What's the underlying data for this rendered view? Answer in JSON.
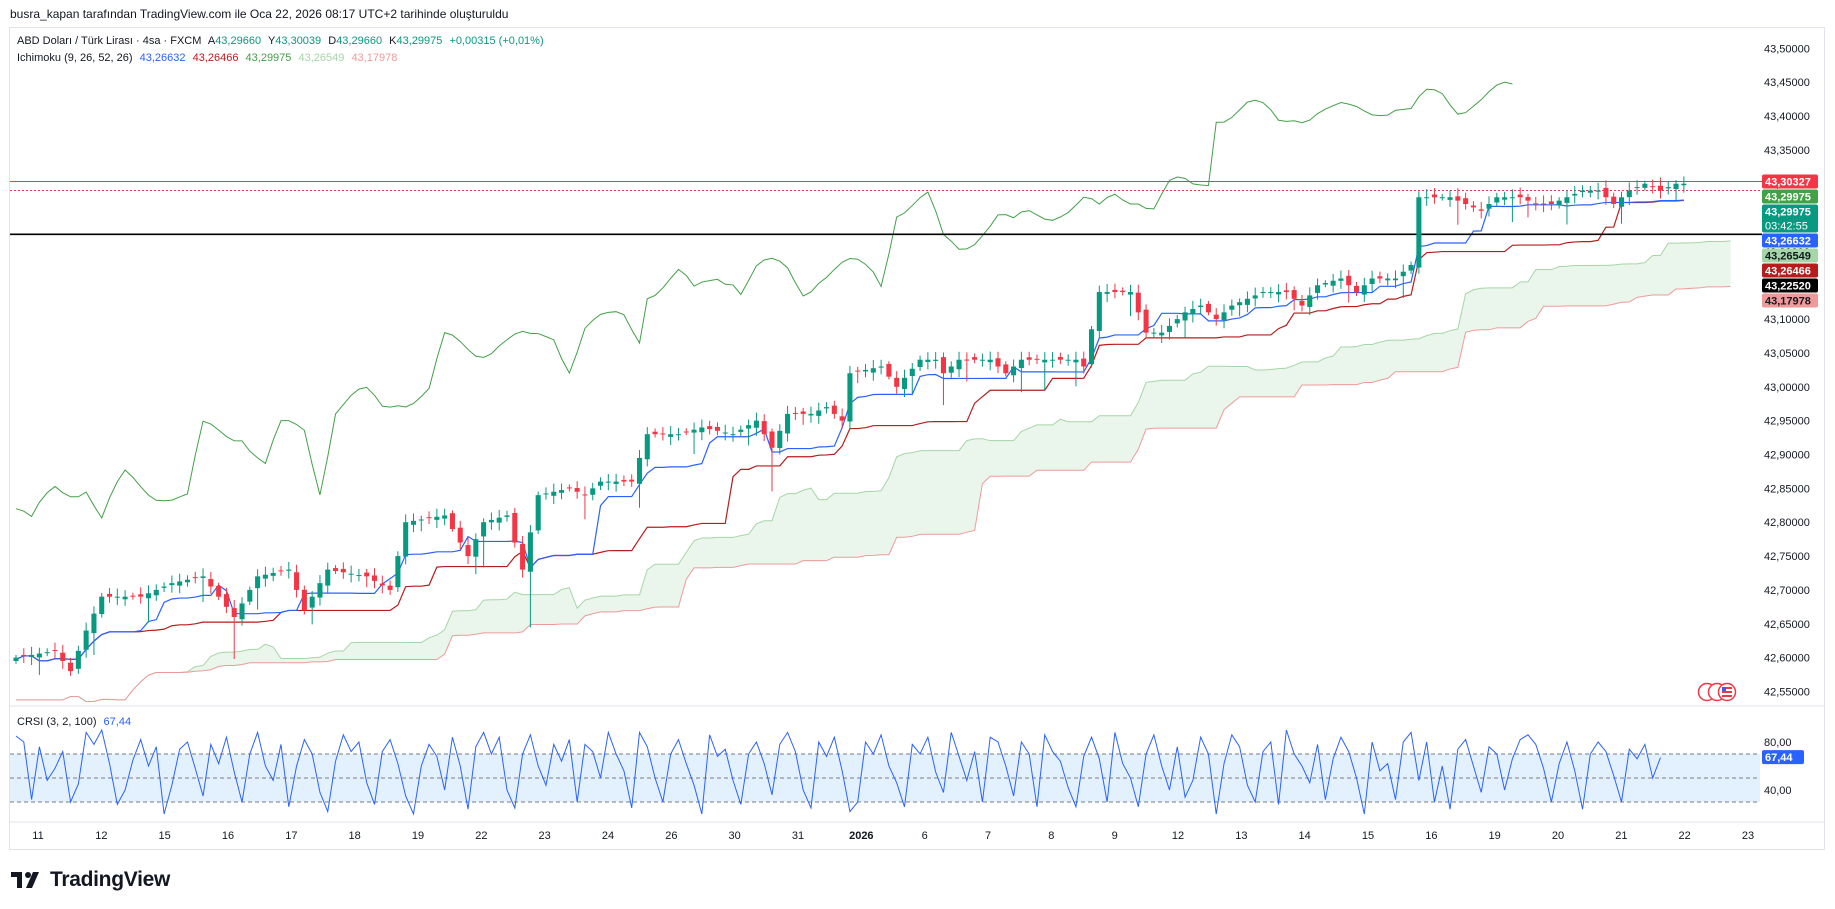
{
  "header": {
    "attribution": "busra_kapan tarafından TradingView.com ile Oca 22, 2026 08:17 UTC+2 tarihinde oluşturuldu"
  },
  "legend": {
    "symbol": "ABD Doları / Türk Lirası · 4sa · FXCM",
    "open_label": "A",
    "open": "43,29660",
    "high_label": "Y",
    "high": "43,30039",
    "low_label": "D",
    "low": "43,29660",
    "close_label": "K",
    "close": "43,29975",
    "change": "+0,00315 (+0,01%)",
    "ichimoku_label": "Ichimoku (9, 26, 52, 26)",
    "ichimoku_values": [
      "43,26632",
      "43,26466",
      "43,29975",
      "43,26549",
      "43,17978"
    ],
    "crsi_label": "CRSI (3, 2, 100)",
    "crsi_value": "67,44"
  },
  "footer": {
    "brand": "TradingView"
  },
  "colors": {
    "up": "#089981",
    "down": "#f23645",
    "conversion": "#2962ff",
    "base": "#b71c1c",
    "lagging": "#43a047",
    "span_a": "#a5d6a7",
    "span_b": "#ef9a9a",
    "cloud": "#e8f5e9",
    "crsi": "#2962ff",
    "crsi_fill": "#e3f0fd",
    "text_up": "#089981",
    "text_down": "#f23645"
  },
  "chart_data": [
    {
      "type": "candlestick",
      "title": "ABD Doları / Türk Lirası · 4sa · FXCM",
      "timeframe": "4sa",
      "ylim": [
        42.53,
        43.53
      ],
      "y_ticks": [
        "43,50000",
        "43,45000",
        "43,40000",
        "43,35000",
        "43,30000",
        "43,25000",
        "43,20000",
        "43,15000",
        "43,10000",
        "43,05000",
        "43,00000",
        "42,95000",
        "42,90000",
        "42,85000",
        "42,80000",
        "42,75000",
        "42,70000",
        "42,65000",
        "42,60000",
        "42,55000"
      ],
      "x_ticks": [
        "11",
        "12",
        "15",
        "16",
        "17",
        "18",
        "19",
        "22",
        "23",
        "24",
        "26",
        "30",
        "31",
        "2026",
        "6",
        "7",
        "8",
        "9",
        "12",
        "13",
        "14",
        "15",
        "16",
        "19",
        "20",
        "21",
        "22",
        "23"
      ],
      "close_anchors": [
        [
          0,
          42.6
        ],
        [
          5,
          42.61
        ],
        [
          7,
          42.58
        ],
        [
          9,
          42.64
        ],
        [
          11,
          42.69
        ],
        [
          16,
          42.69
        ],
        [
          20,
          42.71
        ],
        [
          24,
          42.72
        ],
        [
          28,
          42.66
        ],
        [
          31,
          42.72
        ],
        [
          35,
          42.73
        ],
        [
          37,
          42.67
        ],
        [
          40,
          42.73
        ],
        [
          45,
          42.72
        ],
        [
          48,
          42.7
        ],
        [
          50,
          42.8
        ],
        [
          55,
          42.81
        ],
        [
          58,
          42.75
        ],
        [
          60,
          42.8
        ],
        [
          63,
          42.81
        ],
        [
          65,
          42.73
        ],
        [
          67,
          42.84
        ],
        [
          71,
          42.85
        ],
        [
          73,
          42.84
        ],
        [
          75,
          42.86
        ],
        [
          79,
          42.86
        ],
        [
          81,
          42.93
        ],
        [
          85,
          42.93
        ],
        [
          88,
          42.94
        ],
        [
          92,
          42.93
        ],
        [
          95,
          42.95
        ],
        [
          97,
          42.91
        ],
        [
          99,
          42.96
        ],
        [
          102,
          42.96
        ],
        [
          104,
          42.97
        ],
        [
          106,
          42.95
        ],
        [
          107,
          43.02
        ],
        [
          111,
          43.03
        ],
        [
          113,
          43.0
        ],
        [
          116,
          43.04
        ],
        [
          118,
          43.04
        ],
        [
          119,
          43.02
        ],
        [
          121,
          43.04
        ],
        [
          125,
          43.04
        ],
        [
          127,
          43.02
        ],
        [
          129,
          43.04
        ],
        [
          134,
          43.04
        ],
        [
          136,
          43.04
        ],
        [
          137,
          43.03
        ],
        [
          139,
          43.14
        ],
        [
          143,
          43.14
        ],
        [
          145,
          43.08
        ],
        [
          147,
          43.08
        ],
        [
          150,
          43.11
        ],
        [
          152,
          43.12
        ],
        [
          154,
          43.1
        ],
        [
          156,
          43.12
        ],
        [
          158,
          43.13
        ],
        [
          160,
          43.14
        ],
        [
          163,
          43.14
        ],
        [
          165,
          43.12
        ],
        [
          167,
          43.15
        ],
        [
          170,
          43.16
        ],
        [
          172,
          43.14
        ],
        [
          174,
          43.16
        ],
        [
          177,
          43.16
        ],
        [
          179,
          43.18
        ],
        [
          180,
          43.28
        ],
        [
          184,
          43.28
        ],
        [
          186,
          43.27
        ],
        [
          188,
          43.26
        ],
        [
          190,
          43.28
        ],
        [
          193,
          43.28
        ],
        [
          195,
          43.27
        ],
        [
          197,
          43.27
        ],
        [
          199,
          43.28
        ],
        [
          201,
          43.29
        ],
        [
          203,
          43.29
        ],
        [
          205,
          43.27
        ],
        [
          207,
          43.29
        ],
        [
          209,
          43.3
        ],
        [
          211,
          43.29
        ],
        [
          213,
          43.3
        ],
        [
          214,
          43.3
        ]
      ],
      "ichimoku": {
        "params": [
          9,
          26,
          52,
          26
        ],
        "conversion": 43.26632,
        "base": 43.26466,
        "lagging": 43.29975,
        "span_a": 43.26549,
        "span_b": 43.17978
      },
      "last_price": 43.29975,
      "horizontal_lines": [
        {
          "price": 43.30327,
          "color": "#f23645",
          "style": "solid"
        },
        {
          "price": 43.29,
          "color": "#f23645",
          "style": "dotted"
        },
        {
          "price": 43.2252,
          "color": "#000000",
          "style": "solid"
        }
      ],
      "price_labels": [
        {
          "price": 43.30327,
          "text": "43,30327",
          "bg": "#f23645",
          "fg": "#ffffff"
        },
        {
          "price": 43.29975,
          "text": "43,29975",
          "bg": "#43a047",
          "fg": "#ffffff"
        },
        {
          "price": 43.28,
          "text": "43,29975",
          "sub": "03:42:55",
          "bg": "#089981",
          "fg": "#ffffff"
        },
        {
          "price": 43.26632,
          "text": "43,26632",
          "bg": "#2962ff",
          "fg": "#ffffff"
        },
        {
          "price": 43.26549,
          "text": "43,26549",
          "bg": "#a5d6a7",
          "fg": "#131722"
        },
        {
          "price": 43.26466,
          "text": "43,26466",
          "bg": "#b71c1c",
          "fg": "#ffffff"
        },
        {
          "price": 43.2252,
          "text": "43,22520",
          "bg": "#000000",
          "fg": "#ffffff"
        },
        {
          "price": 43.17978,
          "text": "43,17978",
          "bg": "#ef9a9a",
          "fg": "#131722"
        }
      ]
    },
    {
      "type": "line",
      "title": "CRSI (3, 2, 100)",
      "ylim": [
        15,
        100
      ],
      "bands": [
        70,
        50,
        30
      ],
      "y_ticks": [
        "80,00",
        "40,00"
      ],
      "last_value": 67.44,
      "last_label": "67,44",
      "values": [
        85,
        80,
        32,
        76,
        48,
        58,
        72,
        30,
        45,
        88,
        78,
        90,
        62,
        28,
        40,
        65,
        82,
        60,
        76,
        20,
        44,
        74,
        80,
        58,
        35,
        78,
        62,
        84,
        55,
        30,
        70,
        88,
        60,
        48,
        78,
        26,
        60,
        82,
        70,
        38,
        22,
        64,
        86,
        72,
        80,
        46,
        28,
        72,
        82,
        62,
        35,
        20,
        60,
        78,
        68,
        40,
        84,
        60,
        24,
        76,
        88,
        70,
        84,
        40,
        25,
        70,
        86,
        60,
        44,
        78,
        64,
        82,
        30,
        78,
        72,
        50,
        88,
        70,
        56,
        25,
        88,
        76,
        50,
        30,
        70,
        82,
        62,
        44,
        20,
        86,
        68,
        74,
        48,
        28,
        70,
        80,
        62,
        36,
        78,
        88,
        72,
        40,
        25,
        80,
        68,
        84,
        56,
        22,
        30,
        80,
        70,
        86,
        60,
        46,
        26,
        78,
        70,
        84,
        55,
        38,
        88,
        68,
        48,
        72,
        30,
        84,
        80,
        60,
        35,
        80,
        70,
        26,
        86,
        72,
        64,
        42,
        26,
        68,
        84,
        66,
        30,
        88,
        62,
        50,
        26,
        70,
        86,
        60,
        40,
        76,
        34,
        48,
        84,
        70,
        20,
        62,
        86,
        76,
        44,
        30,
        72,
        80,
        28,
        90,
        70,
        60,
        46,
        78,
        32,
        66,
        84,
        72,
        50,
        20,
        80,
        56,
        62,
        32,
        80,
        88,
        48,
        80,
        30,
        60,
        24,
        74,
        82,
        60,
        38,
        76,
        70,
        40,
        66,
        82,
        86,
        78,
        58,
        30,
        62,
        80,
        56,
        24,
        70,
        80,
        72,
        52,
        30,
        74,
        66,
        78,
        50,
        67
      ]
    }
  ]
}
